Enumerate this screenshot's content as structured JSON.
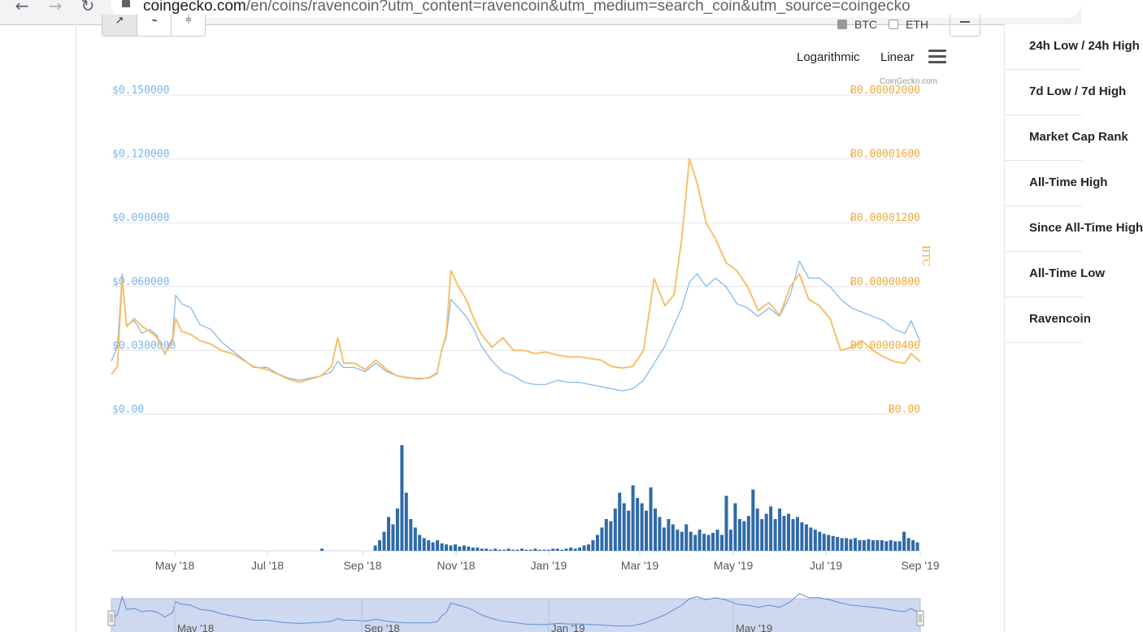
{
  "browser": {
    "back_icon": "arrow-left-icon",
    "forward_icon": "arrow-right-icon",
    "reload_icon": "reload-icon",
    "url_domain": "coingecko.com",
    "url_path": "/en/coins/ravencoin?utm_content=ravencoin&utm_medium=search_coin&utm_source=coingecko"
  },
  "toolbar": {
    "compare": [
      {
        "label": "BTC",
        "checked": true
      },
      {
        "label": "ETH",
        "checked": false
      }
    ],
    "scale_log_label": "Logarithmic",
    "scale_linear_label": "Linear",
    "credit": "CoinGecko.com",
    "btc_axis_title": "BTC"
  },
  "colors": {
    "usd_series": "#7cb5ec",
    "btc_series": "#f7c06b",
    "volume_bars": "#2f6aa8",
    "navigator_fill": "#ced8ee"
  },
  "stats_rows": [
    "24h Low / 24h High",
    "7d Low / 7d High",
    "Market Cap Rank",
    "All-Time High",
    "Since All-Time High",
    "All-Time Low",
    "Ravencoin"
  ],
  "chart_data": {
    "type": "line",
    "y_left_ticks": [
      "$0.00",
      "$0.0300000",
      "$0.060000",
      "$0.090000",
      "$0.120000",
      "$0.150000"
    ],
    "y_left_range": [
      0,
      0.15
    ],
    "y_right_ticks": [
      "Ƀ0.00",
      "Ƀ0.00000400",
      "Ƀ0.00000800",
      "Ƀ0.00001200",
      "Ƀ0.00001600",
      "Ƀ0.00002000"
    ],
    "y_right_range": [
      0,
      2e-05
    ],
    "x_ticks": [
      "May '18",
      "Jul '18",
      "Sep '18",
      "Nov '18",
      "Jan '19",
      "Mar '19",
      "May '19",
      "Jul '19",
      "Sep '19"
    ],
    "x_range": [
      "2018-03-21",
      "2019-09-01"
    ],
    "navigator_ticks": [
      "May '18",
      "Sep '18",
      "Jan '19",
      "May '19"
    ],
    "series": [
      {
        "axis": "left",
        "points": [
          [
            "2018-03-21",
            0.025
          ],
          [
            "2018-03-25",
            0.032
          ],
          [
            "2018-03-28",
            0.066
          ],
          [
            "2018-03-31",
            0.042
          ],
          [
            "2018-04-05",
            0.044
          ],
          [
            "2018-04-10",
            0.038
          ],
          [
            "2018-04-15",
            0.04
          ],
          [
            "2018-04-20",
            0.037
          ],
          [
            "2018-04-25",
            0.028
          ],
          [
            "2018-04-30",
            0.036
          ],
          [
            "2018-05-02",
            0.056
          ],
          [
            "2018-05-06",
            0.052
          ],
          [
            "2018-05-12",
            0.05
          ],
          [
            "2018-05-18",
            0.042
          ],
          [
            "2018-05-25",
            0.04
          ],
          [
            "2018-06-01",
            0.034
          ],
          [
            "2018-06-08",
            0.03
          ],
          [
            "2018-06-15",
            0.026
          ],
          [
            "2018-06-22",
            0.022
          ],
          [
            "2018-07-01",
            0.022
          ],
          [
            "2018-07-08",
            0.019
          ],
          [
            "2018-07-15",
            0.017
          ],
          [
            "2018-07-22",
            0.016
          ],
          [
            "2018-07-29",
            0.017
          ],
          [
            "2018-08-05",
            0.018
          ],
          [
            "2018-08-12",
            0.02
          ],
          [
            "2018-08-16",
            0.025
          ],
          [
            "2018-08-20",
            0.022
          ],
          [
            "2018-08-27",
            0.022
          ],
          [
            "2018-09-03",
            0.02
          ],
          [
            "2018-09-10",
            0.024
          ],
          [
            "2018-09-17",
            0.02
          ],
          [
            "2018-09-24",
            0.018
          ],
          [
            "2018-10-01",
            0.017
          ],
          [
            "2018-10-08",
            0.017
          ],
          [
            "2018-10-15",
            0.017
          ],
          [
            "2018-10-20",
            0.019
          ],
          [
            "2018-10-23",
            0.03
          ],
          [
            "2018-10-26",
            0.036
          ],
          [
            "2018-10-29",
            0.054
          ],
          [
            "2018-11-03",
            0.05
          ],
          [
            "2018-11-08",
            0.046
          ],
          [
            "2018-11-13",
            0.04
          ],
          [
            "2018-11-18",
            0.032
          ],
          [
            "2018-11-25",
            0.025
          ],
          [
            "2018-12-02",
            0.02
          ],
          [
            "2018-12-09",
            0.018
          ],
          [
            "2018-12-16",
            0.015
          ],
          [
            "2018-12-23",
            0.014
          ],
          [
            "2018-12-30",
            0.014
          ],
          [
            "2019-01-07",
            0.016
          ],
          [
            "2019-01-14",
            0.015
          ],
          [
            "2019-01-21",
            0.015
          ],
          [
            "2019-01-28",
            0.014
          ],
          [
            "2019-02-04",
            0.013
          ],
          [
            "2019-02-11",
            0.012
          ],
          [
            "2019-02-18",
            0.011
          ],
          [
            "2019-02-25",
            0.012
          ],
          [
            "2019-03-04",
            0.016
          ],
          [
            "2019-03-11",
            0.024
          ],
          [
            "2019-03-18",
            0.032
          ],
          [
            "2019-03-24",
            0.042
          ],
          [
            "2019-03-29",
            0.05
          ],
          [
            "2019-04-03",
            0.062
          ],
          [
            "2019-04-08",
            0.066
          ],
          [
            "2019-04-14",
            0.06
          ],
          [
            "2019-04-20",
            0.064
          ],
          [
            "2019-04-27",
            0.06
          ],
          [
            "2019-05-04",
            0.052
          ],
          [
            "2019-05-11",
            0.05
          ],
          [
            "2019-05-18",
            0.046
          ],
          [
            "2019-05-25",
            0.05
          ],
          [
            "2019-06-01",
            0.046
          ],
          [
            "2019-06-08",
            0.056
          ],
          [
            "2019-06-14",
            0.072
          ],
          [
            "2019-06-20",
            0.064
          ],
          [
            "2019-06-27",
            0.064
          ],
          [
            "2019-07-04",
            0.06
          ],
          [
            "2019-07-11",
            0.054
          ],
          [
            "2019-07-18",
            0.05
          ],
          [
            "2019-07-25",
            0.048
          ],
          [
            "2019-08-01",
            0.046
          ],
          [
            "2019-08-08",
            0.044
          ],
          [
            "2019-08-15",
            0.04
          ],
          [
            "2019-08-22",
            0.038
          ],
          [
            "2019-08-26",
            0.044
          ],
          [
            "2019-09-01",
            0.034
          ]
        ]
      },
      {
        "axis": "right",
        "points": [
          [
            "2018-03-21",
            2.5e-06
          ],
          [
            "2018-03-25",
            3e-06
          ],
          [
            "2018-03-28",
            8.5e-06
          ],
          [
            "2018-03-31",
            5.5e-06
          ],
          [
            "2018-04-05",
            6e-06
          ],
          [
            "2018-04-10",
            5.5e-06
          ],
          [
            "2018-04-15",
            5.2e-06
          ],
          [
            "2018-04-20",
            4.8e-06
          ],
          [
            "2018-04-25",
            3.8e-06
          ],
          [
            "2018-04-30",
            4.5e-06
          ],
          [
            "2018-05-02",
            6e-06
          ],
          [
            "2018-05-06",
            5.2e-06
          ],
          [
            "2018-05-12",
            5e-06
          ],
          [
            "2018-05-18",
            4.6e-06
          ],
          [
            "2018-05-25",
            4.4e-06
          ],
          [
            "2018-06-01",
            4e-06
          ],
          [
            "2018-06-08",
            3.8e-06
          ],
          [
            "2018-06-15",
            3.4e-06
          ],
          [
            "2018-06-22",
            3e-06
          ],
          [
            "2018-07-01",
            2.8e-06
          ],
          [
            "2018-07-08",
            2.5e-06
          ],
          [
            "2018-07-15",
            2.2e-06
          ],
          [
            "2018-07-22",
            2e-06
          ],
          [
            "2018-07-29",
            2.2e-06
          ],
          [
            "2018-08-05",
            2.4e-06
          ],
          [
            "2018-08-12",
            3e-06
          ],
          [
            "2018-08-16",
            4.8e-06
          ],
          [
            "2018-08-20",
            3.2e-06
          ],
          [
            "2018-08-27",
            3.2e-06
          ],
          [
            "2018-09-03",
            2.8e-06
          ],
          [
            "2018-09-10",
            3.4e-06
          ],
          [
            "2018-09-17",
            2.8e-06
          ],
          [
            "2018-09-24",
            2.4e-06
          ],
          [
            "2018-10-01",
            2.3e-06
          ],
          [
            "2018-10-08",
            2.2e-06
          ],
          [
            "2018-10-15",
            2.3e-06
          ],
          [
            "2018-10-20",
            2.6e-06
          ],
          [
            "2018-10-23",
            4e-06
          ],
          [
            "2018-10-26",
            5e-06
          ],
          [
            "2018-10-29",
            9e-06
          ],
          [
            "2018-11-03",
            8e-06
          ],
          [
            "2018-11-08",
            7.2e-06
          ],
          [
            "2018-11-13",
            6e-06
          ],
          [
            "2018-11-18",
            5e-06
          ],
          [
            "2018-11-25",
            4.2e-06
          ],
          [
            "2018-12-02",
            4.8e-06
          ],
          [
            "2018-12-09",
            4e-06
          ],
          [
            "2018-12-16",
            4e-06
          ],
          [
            "2018-12-23",
            3.8e-06
          ],
          [
            "2018-12-30",
            3.9e-06
          ],
          [
            "2019-01-07",
            3.7e-06
          ],
          [
            "2019-01-14",
            3.6e-06
          ],
          [
            "2019-01-21",
            3.6e-06
          ],
          [
            "2019-01-28",
            3.5e-06
          ],
          [
            "2019-02-04",
            3.4e-06
          ],
          [
            "2019-02-11",
            3e-06
          ],
          [
            "2019-02-18",
            2.9e-06
          ],
          [
            "2019-02-25",
            3e-06
          ],
          [
            "2019-03-04",
            4e-06
          ],
          [
            "2019-03-11",
            8.5e-06
          ],
          [
            "2019-03-18",
            6.8e-06
          ],
          [
            "2019-03-24",
            7.5e-06
          ],
          [
            "2019-03-29",
            1.1e-05
          ],
          [
            "2019-04-03",
            1.6e-05
          ],
          [
            "2019-04-08",
            1.45e-05
          ],
          [
            "2019-04-14",
            1.2e-05
          ],
          [
            "2019-04-20",
            1.1e-05
          ],
          [
            "2019-04-27",
            9.5e-06
          ],
          [
            "2019-05-04",
            9e-06
          ],
          [
            "2019-05-11",
            8e-06
          ],
          [
            "2019-05-18",
            6.5e-06
          ],
          [
            "2019-05-25",
            7e-06
          ],
          [
            "2019-06-01",
            6.2e-06
          ],
          [
            "2019-06-08",
            8e-06
          ],
          [
            "2019-06-14",
            8.8e-06
          ],
          [
            "2019-06-20",
            7.2e-06
          ],
          [
            "2019-06-27",
            6.8e-06
          ],
          [
            "2019-07-04",
            6e-06
          ],
          [
            "2019-07-11",
            4e-06
          ],
          [
            "2019-07-18",
            4.2e-06
          ],
          [
            "2019-07-25",
            4.6e-06
          ],
          [
            "2019-08-01",
            4e-06
          ],
          [
            "2019-08-08",
            3.6e-06
          ],
          [
            "2019-08-15",
            3.3e-06
          ],
          [
            "2019-08-22",
            3.2e-06
          ],
          [
            "2019-08-26",
            3.8e-06
          ],
          [
            "2019-09-01",
            3.3e-06
          ]
        ]
      }
    ],
    "volume_bars": {
      "relative_heights": [
        0,
        0,
        0,
        0,
        0,
        0,
        0,
        0,
        0,
        0,
        0,
        0,
        0,
        0,
        0,
        0,
        0,
        0,
        0,
        0,
        0,
        0,
        0,
        0,
        0,
        0,
        0,
        0,
        0,
        0,
        0,
        0,
        0,
        0,
        0,
        0,
        0,
        0,
        0,
        0,
        0,
        0,
        0,
        0,
        0,
        0,
        0,
        0.02,
        0,
        0,
        0,
        0,
        0,
        0,
        0,
        0,
        0,
        0,
        0,
        0.05,
        0.1,
        0.18,
        0.32,
        0.25,
        0.4,
        1.0,
        0.55,
        0.3,
        0.22,
        0.15,
        0.12,
        0.1,
        0.08,
        0.1,
        0.07,
        0.06,
        0.05,
        0.06,
        0.04,
        0.05,
        0.04,
        0.03,
        0.03,
        0.02,
        0.02,
        0.01,
        0.02,
        0.01,
        0.01,
        0.02,
        0.01,
        0.01,
        0.02,
        0.01,
        0.01,
        0.02,
        0.01,
        0.01,
        0.01,
        0.02,
        0.02,
        0.01,
        0.02,
        0.03,
        0.02,
        0.03,
        0.05,
        0.06,
        0.1,
        0.15,
        0.22,
        0.3,
        0.28,
        0.4,
        0.55,
        0.45,
        0.38,
        0.62,
        0.5,
        0.45,
        0.38,
        0.6,
        0.4,
        0.32,
        0.22,
        0.3,
        0.25,
        0.2,
        0.18,
        0.25,
        0.18,
        0.15,
        0.2,
        0.16,
        0.15,
        0.17,
        0.2,
        0.15,
        0.52,
        0.2,
        0.45,
        0.3,
        0.28,
        0.33,
        0.58,
        0.4,
        0.3,
        0.35,
        0.42,
        0.3,
        0.4,
        0.33,
        0.35,
        0.3,
        0.32,
        0.27,
        0.25,
        0.22,
        0.2,
        0.18,
        0.16,
        0.15,
        0.14,
        0.13,
        0.12,
        0.12,
        0.11,
        0.12,
        0.1,
        0.1,
        0.11,
        0.1,
        0.1,
        0.1,
        0.09,
        0.1,
        0.09,
        0.09,
        0.18,
        0.12,
        0.1,
        0.08
      ]
    }
  }
}
